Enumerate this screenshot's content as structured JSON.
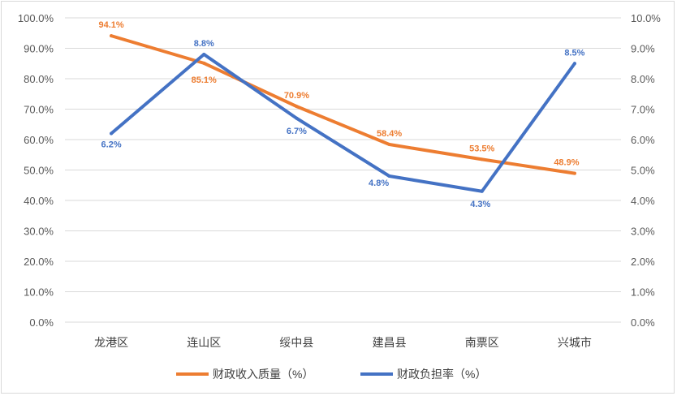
{
  "chart_data": {
    "type": "line",
    "categories": [
      "龙港区",
      "连山区",
      "绥中县",
      "建昌县",
      "南票区",
      "兴城市"
    ],
    "series": [
      {
        "name": "财政收入质量（%）",
        "axis": "left",
        "color": "#ed7d31",
        "values": [
          94.1,
          85.1,
          70.9,
          58.4,
          53.5,
          48.9
        ],
        "labels": [
          "94.1%",
          "85.1%",
          "70.9%",
          "58.4%",
          "53.5%",
          "48.9%"
        ]
      },
      {
        "name": "财政负担率（%）",
        "axis": "right",
        "color": "#4472c4",
        "values": [
          6.2,
          8.8,
          6.7,
          4.8,
          4.3,
          8.5
        ],
        "labels": [
          "6.2%",
          "8.8%",
          "6.7%",
          "4.8%",
          "4.3%",
          "8.5%"
        ]
      }
    ],
    "y_left": {
      "ylim": [
        0,
        100
      ],
      "ticks": [
        "0.0%",
        "10.0%",
        "20.0%",
        "30.0%",
        "40.0%",
        "50.0%",
        "60.0%",
        "70.0%",
        "80.0%",
        "90.0%",
        "100.0%"
      ]
    },
    "y_right": {
      "ylim": [
        0,
        10
      ],
      "ticks": [
        "0.0%",
        "1.0%",
        "2.0%",
        "3.0%",
        "4.0%",
        "5.0%",
        "6.0%",
        "7.0%",
        "8.0%",
        "9.0%",
        "10.0%"
      ]
    },
    "grid": true,
    "legend_position": "bottom"
  }
}
